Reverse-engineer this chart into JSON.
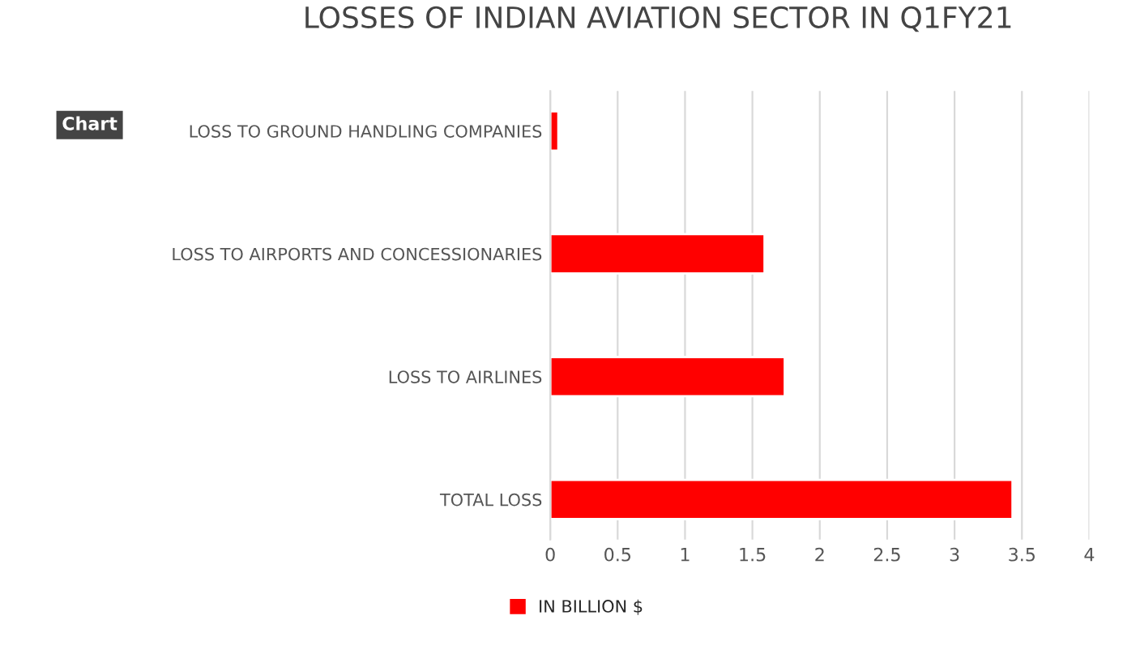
{
  "chart_data": {
    "type": "bar",
    "orientation": "horizontal",
    "title": "LOSSES OF INDIAN AVIATION SECTOR IN Q1FY21",
    "categories": [
      "LOSS TO GROUND HANDLING COMPANIES",
      "LOSS TO AIRPORTS AND CONCESSIONARIES",
      "LOSS TO AIRLINES",
      "TOTAL LOSS"
    ],
    "series": [
      {
        "name": "IN BILLION $",
        "color": "#ff0000",
        "values": [
          0.06,
          1.59,
          1.74,
          3.43
        ]
      }
    ],
    "xlim": [
      0,
      4
    ],
    "xticks": [
      0,
      {
        "value": 0.5,
        "label": "0.5"
      },
      1,
      {
        "value": 1.5,
        "label": "1.5"
      },
      2,
      {
        "value": 2.5,
        "label": "2.5"
      },
      3,
      {
        "value": 3.5,
        "label": "3.5"
      },
      4
    ],
    "grid": "x",
    "legend": "bottom",
    "annotations": [
      "Chart"
    ]
  }
}
